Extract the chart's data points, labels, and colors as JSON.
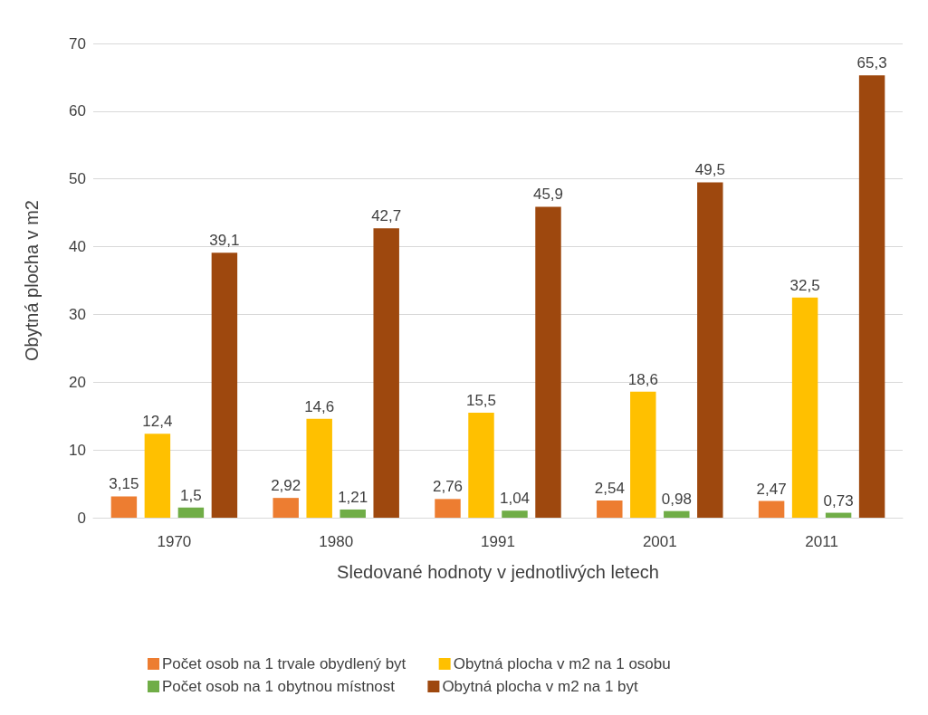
{
  "chart_data": {
    "type": "bar",
    "xlabel": "Sledované hodnoty v jednotlivých letech",
    "ylabel": "Obytná plocha v m2",
    "categories": [
      "1970",
      "1980",
      "1991",
      "2001",
      "2011"
    ],
    "series": [
      {
        "name": "Počet osob na 1 trvale obydlený byt",
        "color": "#ed7d31",
        "values": [
          3.15,
          2.92,
          2.76,
          2.54,
          2.47
        ],
        "value_labels": [
          "3,15",
          "2,92",
          "2,76",
          "2,54",
          "2,47"
        ]
      },
      {
        "name": "Obytná plocha v m2 na 1 osobu",
        "color": "#ffc000",
        "values": [
          12.4,
          14.6,
          15.5,
          18.6,
          32.5
        ],
        "value_labels": [
          "12,4",
          "14,6",
          "15,5",
          "18,6",
          "32,5"
        ]
      },
      {
        "name": "Počet osob na 1 obytnou místnost",
        "color": "#70ad47",
        "values": [
          1.5,
          1.21,
          1.04,
          0.98,
          0.73
        ],
        "value_labels": [
          "1,5",
          "1,21",
          "1,04",
          "0,98",
          "0,73"
        ]
      },
      {
        "name": "Obytná plocha v m2 na 1 byt",
        "color": "#9e480e",
        "values": [
          39.1,
          42.7,
          45.9,
          49.5,
          65.3
        ],
        "value_labels": [
          "39,1",
          "42,7",
          "45,9",
          "49,5",
          "65,3"
        ]
      }
    ],
    "ylim": [
      0,
      70
    ],
    "yticks": [
      0,
      10,
      20,
      30,
      40,
      50,
      60,
      70
    ],
    "grid": "y",
    "legend": "bottom"
  }
}
